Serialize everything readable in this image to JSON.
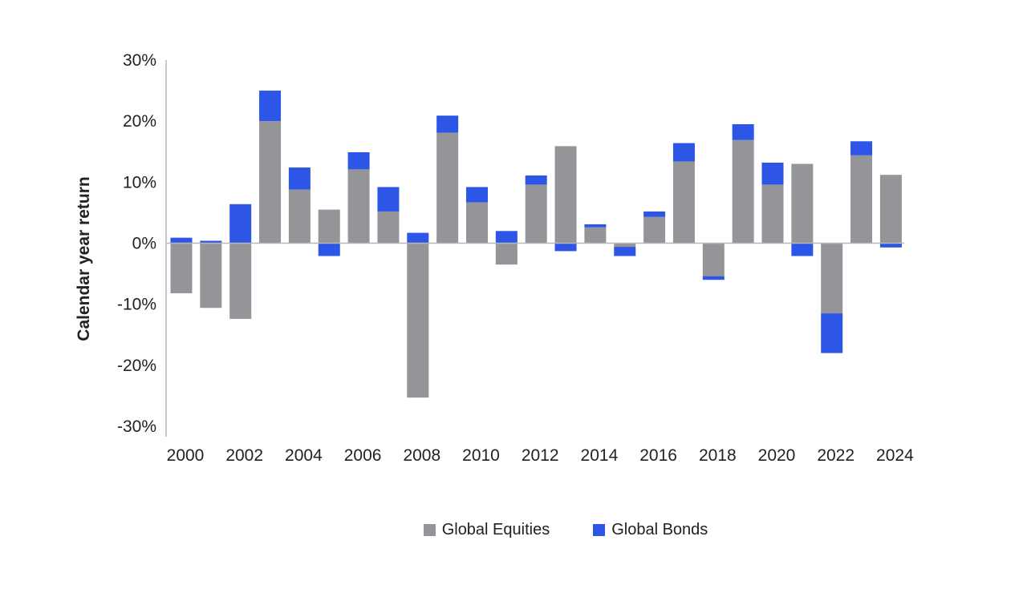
{
  "chart_data": {
    "type": "bar",
    "stacked": true,
    "title": "",
    "xlabel": "",
    "ylabel": "Calendar year return",
    "ylim": [
      -30,
      30
    ],
    "yticks": [
      30,
      20,
      10,
      0,
      -10,
      -20,
      -30
    ],
    "ytick_labels": [
      "30%",
      "20%",
      "10%",
      "0%",
      "-10%",
      "-20%",
      "-30%"
    ],
    "categories": [
      "2000",
      "2001",
      "2002",
      "2003",
      "2004",
      "2005",
      "2006",
      "2007",
      "2008",
      "2009",
      "2010",
      "2011",
      "2012",
      "2013",
      "2014",
      "2015",
      "2016",
      "2017",
      "2018",
      "2019",
      "2020",
      "2021",
      "2022",
      "2023",
      "2024"
    ],
    "xtick_labels": [
      "2000",
      "2002",
      "2004",
      "2006",
      "2008",
      "2010",
      "2012",
      "2014",
      "2016",
      "2018",
      "2020",
      "2022",
      "2024"
    ],
    "series": [
      {
        "name": "Global Equities",
        "color": "#939598",
        "values": [
          -8.2,
          -10.6,
          -12.4,
          20.0,
          8.8,
          5.5,
          12.1,
          5.2,
          -25.3,
          18.1,
          6.7,
          -3.5,
          9.6,
          15.9,
          2.6,
          -0.6,
          4.3,
          13.4,
          -5.4,
          16.9,
          9.6,
          13.0,
          -11.5,
          14.4,
          11.2
        ]
      },
      {
        "name": "Global Bonds",
        "color": "#2d55e6",
        "values": [
          0.9,
          0.4,
          6.4,
          5.0,
          3.6,
          -2.1,
          2.8,
          4.0,
          1.7,
          2.8,
          2.5,
          2.0,
          1.5,
          -1.3,
          0.5,
          -1.5,
          0.9,
          3.0,
          -0.6,
          2.6,
          3.6,
          -2.1,
          -6.5,
          2.3,
          -0.7
        ]
      }
    ],
    "legend_position": "bottom-center",
    "grid": false
  }
}
